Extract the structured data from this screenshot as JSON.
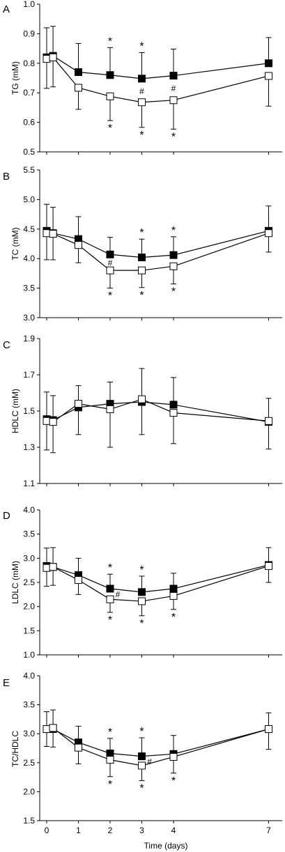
{
  "figure": {
    "x_axis_label": "Time (days)",
    "x_ticks": [
      "0",
      "1",
      "2",
      "3",
      "4",
      "7"
    ]
  },
  "chart_data": [
    {
      "type": "line",
      "panel": "A",
      "ylabel": "TG (mM)",
      "ylim": [
        0.5,
        1.0
      ],
      "yticks": [
        "0.5",
        "0.6",
        "0.7",
        "0.8",
        "0.9",
        "1.0"
      ],
      "x": [
        0,
        0.2,
        1,
        2,
        3,
        4,
        7
      ],
      "series": [
        {
          "marker": "filled-square",
          "values": [
            0.82,
            0.825,
            0.77,
            0.76,
            0.748,
            0.758,
            0.8
          ],
          "err": [
            0.1,
            0.1,
            0.097,
            0.093,
            0.088,
            0.09,
            0.087
          ]
        },
        {
          "marker": "open-square",
          "values": [
            0.815,
            0.82,
            0.717,
            0.688,
            0.668,
            0.675,
            0.757
          ],
          "err": [
            0.1,
            0.1,
            0.073,
            0.082,
            0.085,
            0.098,
            0.102
          ]
        }
      ],
      "annotations": [
        {
          "text": "*",
          "x": 2,
          "pos": "above"
        },
        {
          "text": "*",
          "x": 3,
          "pos": "above"
        },
        {
          "text": "#",
          "x": 3,
          "pos": "near"
        },
        {
          "text": "#",
          "x": 4,
          "pos": "near"
        },
        {
          "text": "*",
          "x": 2,
          "pos": "below"
        },
        {
          "text": "*",
          "x": 3,
          "pos": "below"
        },
        {
          "text": "*",
          "x": 4,
          "pos": "below"
        }
      ]
    },
    {
      "type": "line",
      "panel": "B",
      "ylabel": "TC (mM)",
      "ylim": [
        3.0,
        5.5
      ],
      "yticks": [
        "3.0",
        "3.5",
        "4.0",
        "4.5",
        "5.0",
        "5.5"
      ],
      "x": [
        0,
        0.2,
        1,
        2,
        3,
        4,
        7
      ],
      "series": [
        {
          "marker": "filled-square",
          "values": [
            4.47,
            4.43,
            4.33,
            4.07,
            4.02,
            4.06,
            4.47
          ],
          "err": [
            0.45,
            0.44,
            0.38,
            0.29,
            0.31,
            0.31,
            0.42
          ]
        },
        {
          "marker": "open-square",
          "values": [
            4.43,
            4.42,
            4.23,
            3.8,
            3.8,
            3.87,
            4.43
          ],
          "err": [
            0.45,
            0.44,
            0.3,
            0.3,
            0.29,
            0.3,
            0.32
          ]
        }
      ],
      "annotations": [
        {
          "text": "*",
          "x": 3,
          "pos": "above"
        },
        {
          "text": "*",
          "x": 4,
          "pos": "above"
        },
        {
          "text": "#",
          "x": 2,
          "pos": "near"
        },
        {
          "text": "*",
          "x": 2,
          "pos": "below"
        },
        {
          "text": "*",
          "x": 3,
          "pos": "below"
        },
        {
          "text": "*",
          "x": 4,
          "pos": "below"
        }
      ]
    },
    {
      "type": "line",
      "panel": "C",
      "ylabel": "HDLC (mM)",
      "ylim": [
        1.1,
        1.9
      ],
      "yticks": [
        "1.1",
        "1.3",
        "1.5",
        "1.7",
        "1.9"
      ],
      "x": [
        0,
        0.2,
        1,
        2,
        3,
        4,
        7
      ],
      "series": [
        {
          "marker": "filled-square",
          "values": [
            1.455,
            1.45,
            1.52,
            1.54,
            1.55,
            1.535,
            1.44
          ],
          "err": [
            0.15,
            0.135,
            0.12,
            0.12,
            0.185,
            0.15,
            0.13
          ]
        },
        {
          "marker": "open-square",
          "values": [
            1.445,
            1.44,
            1.54,
            1.51,
            1.565,
            1.49,
            1.445
          ],
          "err": [
            0.16,
            0.17,
            0.17,
            0.21,
            0.195,
            0.17,
            0.155
          ]
        }
      ],
      "annotations": []
    },
    {
      "type": "line",
      "panel": "D",
      "ylabel": "LDLC (mM)",
      "ylim": [
        1.0,
        4.0
      ],
      "yticks": [
        "1.0",
        "1.5",
        "2.0",
        "2.5",
        "3.0",
        "3.5",
        "4.0"
      ],
      "x": [
        0,
        0.2,
        1,
        2,
        3,
        4,
        7
      ],
      "series": [
        {
          "marker": "filled-square",
          "values": [
            2.84,
            2.82,
            2.65,
            2.37,
            2.3,
            2.37,
            2.86
          ],
          "err": [
            0.37,
            0.4,
            0.35,
            0.3,
            0.33,
            0.32,
            0.36
          ]
        },
        {
          "marker": "open-square",
          "values": [
            2.8,
            2.82,
            2.55,
            2.15,
            2.11,
            2.22,
            2.84
          ],
          "err": [
            0.38,
            0.38,
            0.3,
            0.27,
            0.3,
            0.28,
            0.34
          ]
        }
      ],
      "annotations": [
        {
          "text": "*",
          "x": 2,
          "pos": "above"
        },
        {
          "text": "*",
          "x": 3,
          "pos": "above"
        },
        {
          "text": "#",
          "x": 2,
          "pos": "near"
        },
        {
          "text": "*",
          "x": 2,
          "pos": "below"
        },
        {
          "text": "*",
          "x": 3,
          "pos": "below"
        },
        {
          "text": "*",
          "x": 4,
          "pos": "below"
        }
      ]
    },
    {
      "type": "line",
      "panel": "E",
      "ylabel": "TC/HDLC",
      "ylim": [
        1.5,
        4.0
      ],
      "yticks": [
        "1.5",
        "2.0",
        "2.5",
        "3.0",
        "3.5",
        "4.0"
      ],
      "x": [
        0,
        0.2,
        1,
        2,
        3,
        4,
        7
      ],
      "series": [
        {
          "marker": "filled-square",
          "values": [
            3.08,
            3.08,
            2.85,
            2.66,
            2.61,
            2.65,
            3.08
          ],
          "err": [
            0.3,
            0.33,
            0.28,
            0.26,
            0.32,
            0.32,
            0.28
          ]
        },
        {
          "marker": "open-square",
          "values": [
            3.08,
            3.1,
            2.76,
            2.55,
            2.45,
            2.6,
            3.08
          ],
          "err": [
            0.3,
            0.33,
            0.28,
            0.29,
            0.26,
            0.28,
            0.35
          ]
        }
      ],
      "annotations": [
        {
          "text": "*",
          "x": 2,
          "pos": "above"
        },
        {
          "text": "*",
          "x": 3,
          "pos": "above"
        },
        {
          "text": "#",
          "x": 3,
          "pos": "near"
        },
        {
          "text": "*",
          "x": 2,
          "pos": "below"
        },
        {
          "text": "*",
          "x": 3,
          "pos": "below"
        },
        {
          "text": "*",
          "x": 4,
          "pos": "below"
        }
      ]
    }
  ]
}
